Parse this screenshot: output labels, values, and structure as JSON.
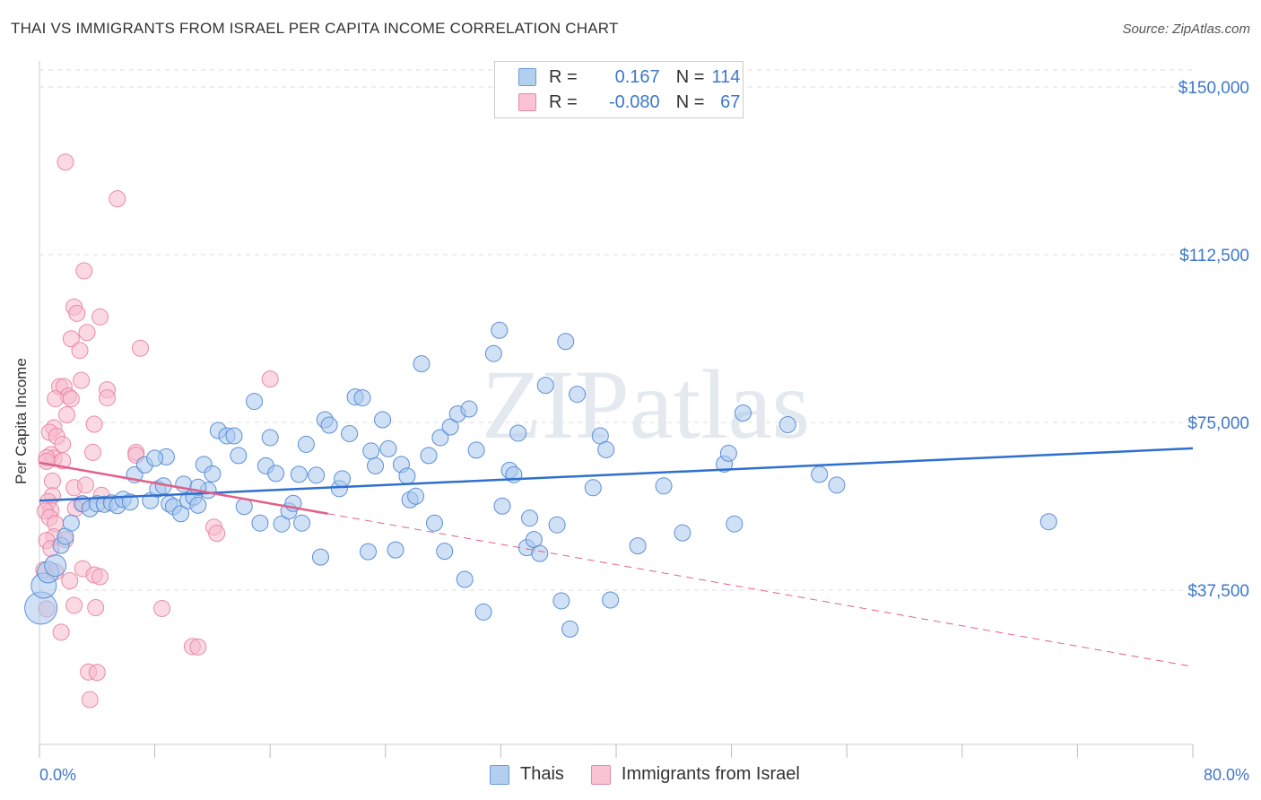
{
  "title": "THAI VS IMMIGRANTS FROM ISRAEL PER CAPITA INCOME CORRELATION CHART",
  "source": "Source: ZipAtlas.com",
  "watermark": "ZIPatlas",
  "legend": {
    "rows": [
      {
        "r_label": "R =",
        "r_value": "0.167",
        "n_label": "N =",
        "n_value": "114"
      },
      {
        "r_label": "R =",
        "r_value": "-0.080",
        "n_label": "N =",
        "n_value": "67"
      }
    ]
  },
  "bottom_legend": [
    "Thais",
    "Immigrants from Israel"
  ],
  "colors": {
    "blue_fill": "#a9c8ee",
    "blue_stroke": "#5b8fd6",
    "blue_line": "#2f6fce",
    "pink_fill": "#f7b9cc",
    "pink_stroke": "#e88aa8",
    "pink_line": "#e0608a",
    "grid": "#dddddd",
    "tick_text": "#3d78c8"
  },
  "chart_data": {
    "type": "scatter",
    "title": "THAI VS IMMIGRANTS FROM ISRAEL PER CAPITA INCOME CORRELATION CHART",
    "xlabel": "",
    "ylabel": "Per Capita Income",
    "xlim": [
      0,
      80
    ],
    "ylim": [
      0,
      155000
    ],
    "x_tick_labels": [
      "0.0%",
      "80.0%"
    ],
    "y_ticks": [
      {
        "value": 37500,
        "label": "$37,500"
      },
      {
        "value": 75000,
        "label": "$75,000"
      },
      {
        "value": 112500,
        "label": "$112,500"
      },
      {
        "value": 150000,
        "label": "$150,000"
      }
    ],
    "series": [
      {
        "name": "Thais",
        "r": 0.167,
        "n": 114,
        "trend": {
          "x0": 0,
          "y0": 57500,
          "x1": 80,
          "y1": 69200
        },
        "points": [
          [
            0.1,
            33500
          ],
          [
            0.3,
            38500
          ],
          [
            0.6,
            41500
          ],
          [
            1.1,
            43000
          ],
          [
            1.5,
            47500
          ],
          [
            1.8,
            49500
          ],
          [
            2.2,
            52500
          ],
          [
            3.0,
            56800
          ],
          [
            3.5,
            55700
          ],
          [
            4.0,
            56800
          ],
          [
            4.5,
            56700
          ],
          [
            5.0,
            57000
          ],
          [
            5.4,
            56400
          ],
          [
            5.8,
            57800
          ],
          [
            6.3,
            57200
          ],
          [
            6.6,
            63300
          ],
          [
            7.3,
            65500
          ],
          [
            7.7,
            57500
          ],
          [
            8.2,
            60100
          ],
          [
            8.6,
            60800
          ],
          [
            8.8,
            67300
          ],
          [
            9.0,
            56800
          ],
          [
            9.3,
            56200
          ],
          [
            9.8,
            54600
          ],
          [
            10.0,
            61200
          ],
          [
            10.3,
            57500
          ],
          [
            10.7,
            58300
          ],
          [
            11.0,
            56500
          ],
          [
            11.4,
            65600
          ],
          [
            11.7,
            59800
          ],
          [
            12.0,
            63500
          ],
          [
            12.4,
            73200
          ],
          [
            13.0,
            72000
          ],
          [
            13.5,
            72000
          ],
          [
            13.8,
            67600
          ],
          [
            14.2,
            56200
          ],
          [
            14.9,
            79700
          ],
          [
            15.3,
            52500
          ],
          [
            15.7,
            65300
          ],
          [
            16.0,
            71600
          ],
          [
            16.4,
            63600
          ],
          [
            16.8,
            52300
          ],
          [
            17.3,
            55200
          ],
          [
            17.6,
            56900
          ],
          [
            18.0,
            63400
          ],
          [
            18.5,
            70100
          ],
          [
            19.2,
            63200
          ],
          [
            19.5,
            44900
          ],
          [
            19.8,
            75600
          ],
          [
            20.1,
            74400
          ],
          [
            20.8,
            60200
          ],
          [
            21.0,
            62400
          ],
          [
            21.5,
            72500
          ],
          [
            21.9,
            80700
          ],
          [
            22.4,
            80500
          ],
          [
            22.8,
            46100
          ],
          [
            23.0,
            68600
          ],
          [
            23.3,
            65300
          ],
          [
            23.8,
            75600
          ],
          [
            24.2,
            69100
          ],
          [
            24.7,
            46500
          ],
          [
            25.1,
            65600
          ],
          [
            25.5,
            63000
          ],
          [
            25.7,
            57700
          ],
          [
            26.1,
            58500
          ],
          [
            26.5,
            88100
          ],
          [
            27.0,
            67600
          ],
          [
            27.4,
            52500
          ],
          [
            27.8,
            71600
          ],
          [
            28.1,
            46200
          ],
          [
            28.5,
            74000
          ],
          [
            29.0,
            76900
          ],
          [
            29.5,
            39900
          ],
          [
            29.8,
            78000
          ],
          [
            30.3,
            68800
          ],
          [
            30.8,
            32600
          ],
          [
            31.5,
            90400
          ],
          [
            31.9,
            95600
          ],
          [
            32.1,
            56300
          ],
          [
            32.6,
            64300
          ],
          [
            32.9,
            63300
          ],
          [
            33.2,
            72600
          ],
          [
            33.8,
            47000
          ],
          [
            34.0,
            53600
          ],
          [
            34.3,
            48800
          ],
          [
            34.7,
            45700
          ],
          [
            35.1,
            83300
          ],
          [
            35.9,
            52100
          ],
          [
            36.2,
            35100
          ],
          [
            36.5,
            93100
          ],
          [
            36.8,
            28800
          ],
          [
            37.3,
            81300
          ],
          [
            38.4,
            60400
          ],
          [
            38.9,
            72000
          ],
          [
            39.3,
            68900
          ],
          [
            39.6,
            35300
          ],
          [
            41.5,
            47400
          ],
          [
            43.3,
            60800
          ],
          [
            44.6,
            50300
          ],
          [
            47.5,
            65700
          ],
          [
            47.8,
            68100
          ],
          [
            48.2,
            52300
          ],
          [
            48.8,
            77100
          ],
          [
            51.9,
            74500
          ],
          [
            54.1,
            63400
          ],
          [
            55.3,
            61000
          ],
          [
            70.0,
            52800
          ],
          [
            8.0,
            67000
          ],
          [
            11.0,
            60500
          ],
          [
            18.2,
            52500
          ]
        ]
      },
      {
        "name": "Immigrants from Israel",
        "r": -0.08,
        "n": 67,
        "trend_solid": {
          "x0": 0,
          "y0": 66000,
          "x1": 20,
          "y1": 54600
        },
        "trend_dashed": {
          "x0": 20,
          "y0": 54600,
          "x1": 80,
          "y1": 20400
        },
        "points": [
          [
            1.8,
            133200
          ],
          [
            5.4,
            125000
          ],
          [
            3.1,
            108900
          ],
          [
            2.4,
            100800
          ],
          [
            4.2,
            98600
          ],
          [
            2.6,
            99400
          ],
          [
            3.3,
            95100
          ],
          [
            2.2,
            93700
          ],
          [
            7.0,
            91600
          ],
          [
            2.8,
            91100
          ],
          [
            16.0,
            84700
          ],
          [
            2.9,
            84400
          ],
          [
            1.4,
            83000
          ],
          [
            1.7,
            83000
          ],
          [
            4.7,
            82300
          ],
          [
            2.0,
            80900
          ],
          [
            2.2,
            80300
          ],
          [
            4.7,
            80500
          ],
          [
            1.1,
            80300
          ],
          [
            1.9,
            76700
          ],
          [
            3.8,
            74600
          ],
          [
            1.0,
            73800
          ],
          [
            0.7,
            72800
          ],
          [
            1.2,
            71900
          ],
          [
            1.6,
            70100
          ],
          [
            0.8,
            67800
          ],
          [
            1.0,
            67000
          ],
          [
            0.5,
            67100
          ],
          [
            3.7,
            68300
          ],
          [
            6.7,
            68300
          ],
          [
            6.7,
            67700
          ],
          [
            0.5,
            66300
          ],
          [
            1.6,
            66400
          ],
          [
            0.9,
            61900
          ],
          [
            2.4,
            60400
          ],
          [
            3.2,
            61000
          ],
          [
            4.3,
            58700
          ],
          [
            0.9,
            58600
          ],
          [
            0.6,
            57300
          ],
          [
            2.9,
            56800
          ],
          [
            2.5,
            55800
          ],
          [
            0.8,
            55300
          ],
          [
            0.4,
            55200
          ],
          [
            0.7,
            53700
          ],
          [
            1.1,
            52400
          ],
          [
            12.1,
            51600
          ],
          [
            12.3,
            50200
          ],
          [
            1.0,
            49400
          ],
          [
            1.8,
            48800
          ],
          [
            0.5,
            48600
          ],
          [
            0.8,
            46800
          ],
          [
            3.0,
            42300
          ],
          [
            0.3,
            42000
          ],
          [
            1.1,
            41600
          ],
          [
            2.1,
            39600
          ],
          [
            3.8,
            40900
          ],
          [
            4.2,
            40500
          ],
          [
            3.9,
            33600
          ],
          [
            0.5,
            33300
          ],
          [
            2.4,
            34100
          ],
          [
            8.5,
            33400
          ],
          [
            1.5,
            28100
          ],
          [
            10.6,
            24900
          ],
          [
            11.0,
            24800
          ],
          [
            3.4,
            19200
          ],
          [
            4.0,
            19100
          ],
          [
            3.5,
            13000
          ]
        ]
      }
    ]
  }
}
